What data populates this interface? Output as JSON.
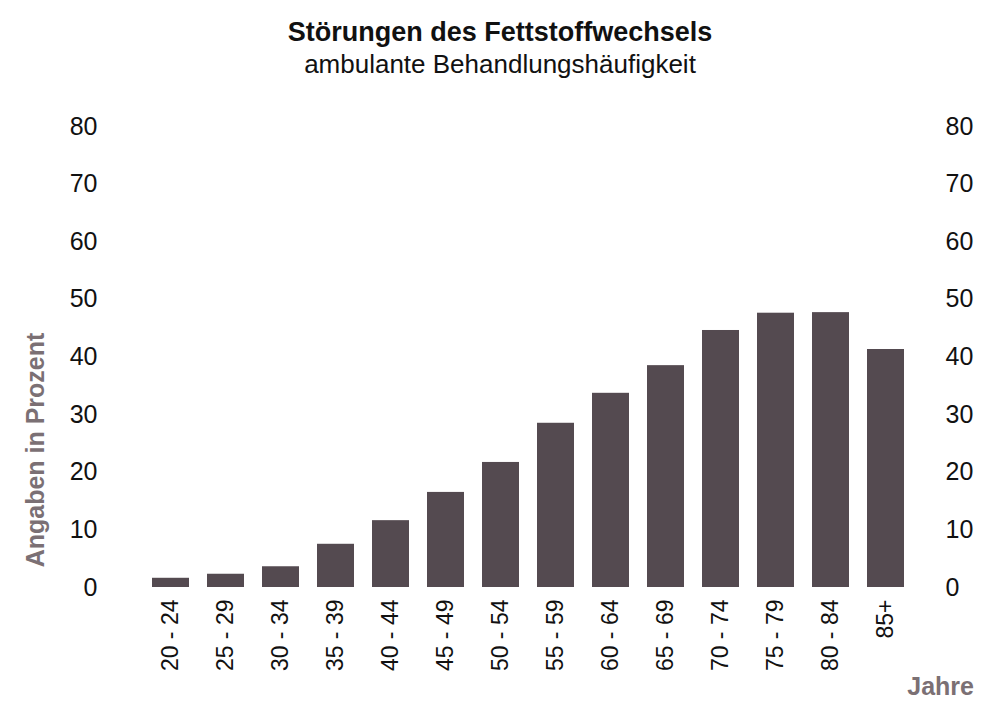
{
  "chart_data": {
    "type": "bar",
    "title": "Störungen des Fettstoffwechsels",
    "subtitle": "ambulante Behandlungshäufigkeit",
    "y_label": "Angaben in Prozent",
    "x_label": "Jahre",
    "categories": [
      "20 - 24",
      "25 - 29",
      "30 - 34",
      "35 - 39",
      "40 - 44",
      "45 - 49",
      "50 - 54",
      "55 - 59",
      "60 - 64",
      "65 - 69",
      "70 - 74",
      "75 - 79",
      "80 - 84",
      "85+"
    ],
    "values": [
      1.6,
      2.3,
      3.6,
      7.5,
      11.6,
      16.5,
      21.7,
      28.5,
      33.7,
      38.5,
      44.6,
      47.6,
      47.7,
      41.3
    ],
    "color": "#544a50",
    "ylim": [
      0,
      80
    ],
    "yticks": [
      0,
      10,
      20,
      30,
      40,
      50,
      60,
      70,
      80
    ],
    "grid": false
  }
}
